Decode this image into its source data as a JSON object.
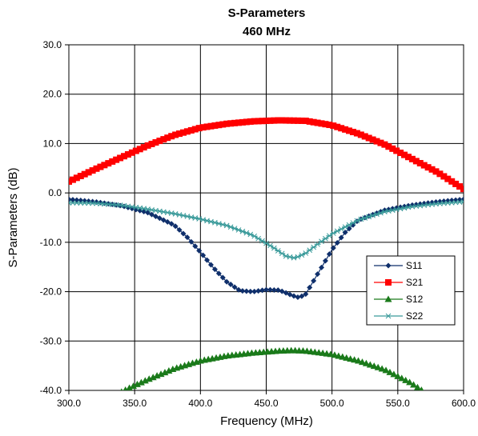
{
  "chart_data": {
    "type": "line",
    "title": "S-Parameters",
    "subtitle": "460 MHz",
    "xlabel": "Frequency (MHz)",
    "ylabel": "S-Parameters (dB)",
    "xlim": [
      300,
      600
    ],
    "ylim": [
      -40,
      30
    ],
    "xticks": [
      "300.0",
      "350.0",
      "400.0",
      "450.0",
      "500.0",
      "550.0",
      "600.0"
    ],
    "yticks": [
      "30.0",
      "20.0",
      "10.0",
      "0.0",
      "-10.0",
      "-20.0",
      "-30.0",
      "-40.0"
    ],
    "grid": true,
    "legend_position": "right",
    "series": [
      {
        "name": "S11",
        "color": "#0f2f6b",
        "marker": "diamond",
        "x": [
          300,
          320,
          340,
          360,
          380,
          390,
          400,
          410,
          420,
          430,
          440,
          450,
          460,
          470,
          475,
          480,
          490,
          500,
          510,
          520,
          540,
          560,
          580,
          600
        ],
        "y": [
          -1.3,
          -1.8,
          -2.6,
          -4.0,
          -6.5,
          -9.0,
          -12.0,
          -15.2,
          -18.0,
          -19.8,
          -20.0,
          -19.6,
          -19.7,
          -20.8,
          -21.2,
          -20.5,
          -16.0,
          -11.5,
          -8.0,
          -5.5,
          -3.5,
          -2.5,
          -1.8,
          -1.3
        ]
      },
      {
        "name": "S21",
        "color": "#ff0000",
        "marker": "square",
        "x": [
          300,
          320,
          340,
          360,
          380,
          400,
          420,
          440,
          460,
          480,
          500,
          520,
          540,
          560,
          580,
          600
        ],
        "y": [
          2.3,
          4.8,
          7.2,
          9.6,
          11.7,
          13.2,
          14.0,
          14.5,
          14.7,
          14.6,
          13.7,
          12.0,
          9.8,
          7.0,
          4.2,
          0.8
        ]
      },
      {
        "name": "S12",
        "color": "#1a7a1a",
        "marker": "triangle",
        "x": [
          340,
          350,
          360,
          380,
          400,
          420,
          440,
          460,
          470,
          480,
          500,
          520,
          540,
          560,
          570
        ],
        "y": [
          -40.3,
          -39.0,
          -37.8,
          -35.6,
          -34.0,
          -33.0,
          -32.4,
          -32.0,
          -31.9,
          -32.0,
          -32.7,
          -34.0,
          -35.8,
          -38.5,
          -40.3
        ]
      },
      {
        "name": "S22",
        "color": "#3a9a9a",
        "marker": "asterisk",
        "x": [
          300,
          320,
          340,
          360,
          380,
          400,
          420,
          440,
          455,
          465,
          472,
          480,
          490,
          500,
          520,
          540,
          560,
          580,
          600
        ],
        "y": [
          -2.0,
          -2.1,
          -2.5,
          -3.3,
          -4.2,
          -5.3,
          -6.6,
          -8.6,
          -11.0,
          -12.8,
          -13.2,
          -12.2,
          -10.2,
          -8.3,
          -5.5,
          -3.8,
          -2.8,
          -2.2,
          -1.8
        ]
      }
    ]
  }
}
